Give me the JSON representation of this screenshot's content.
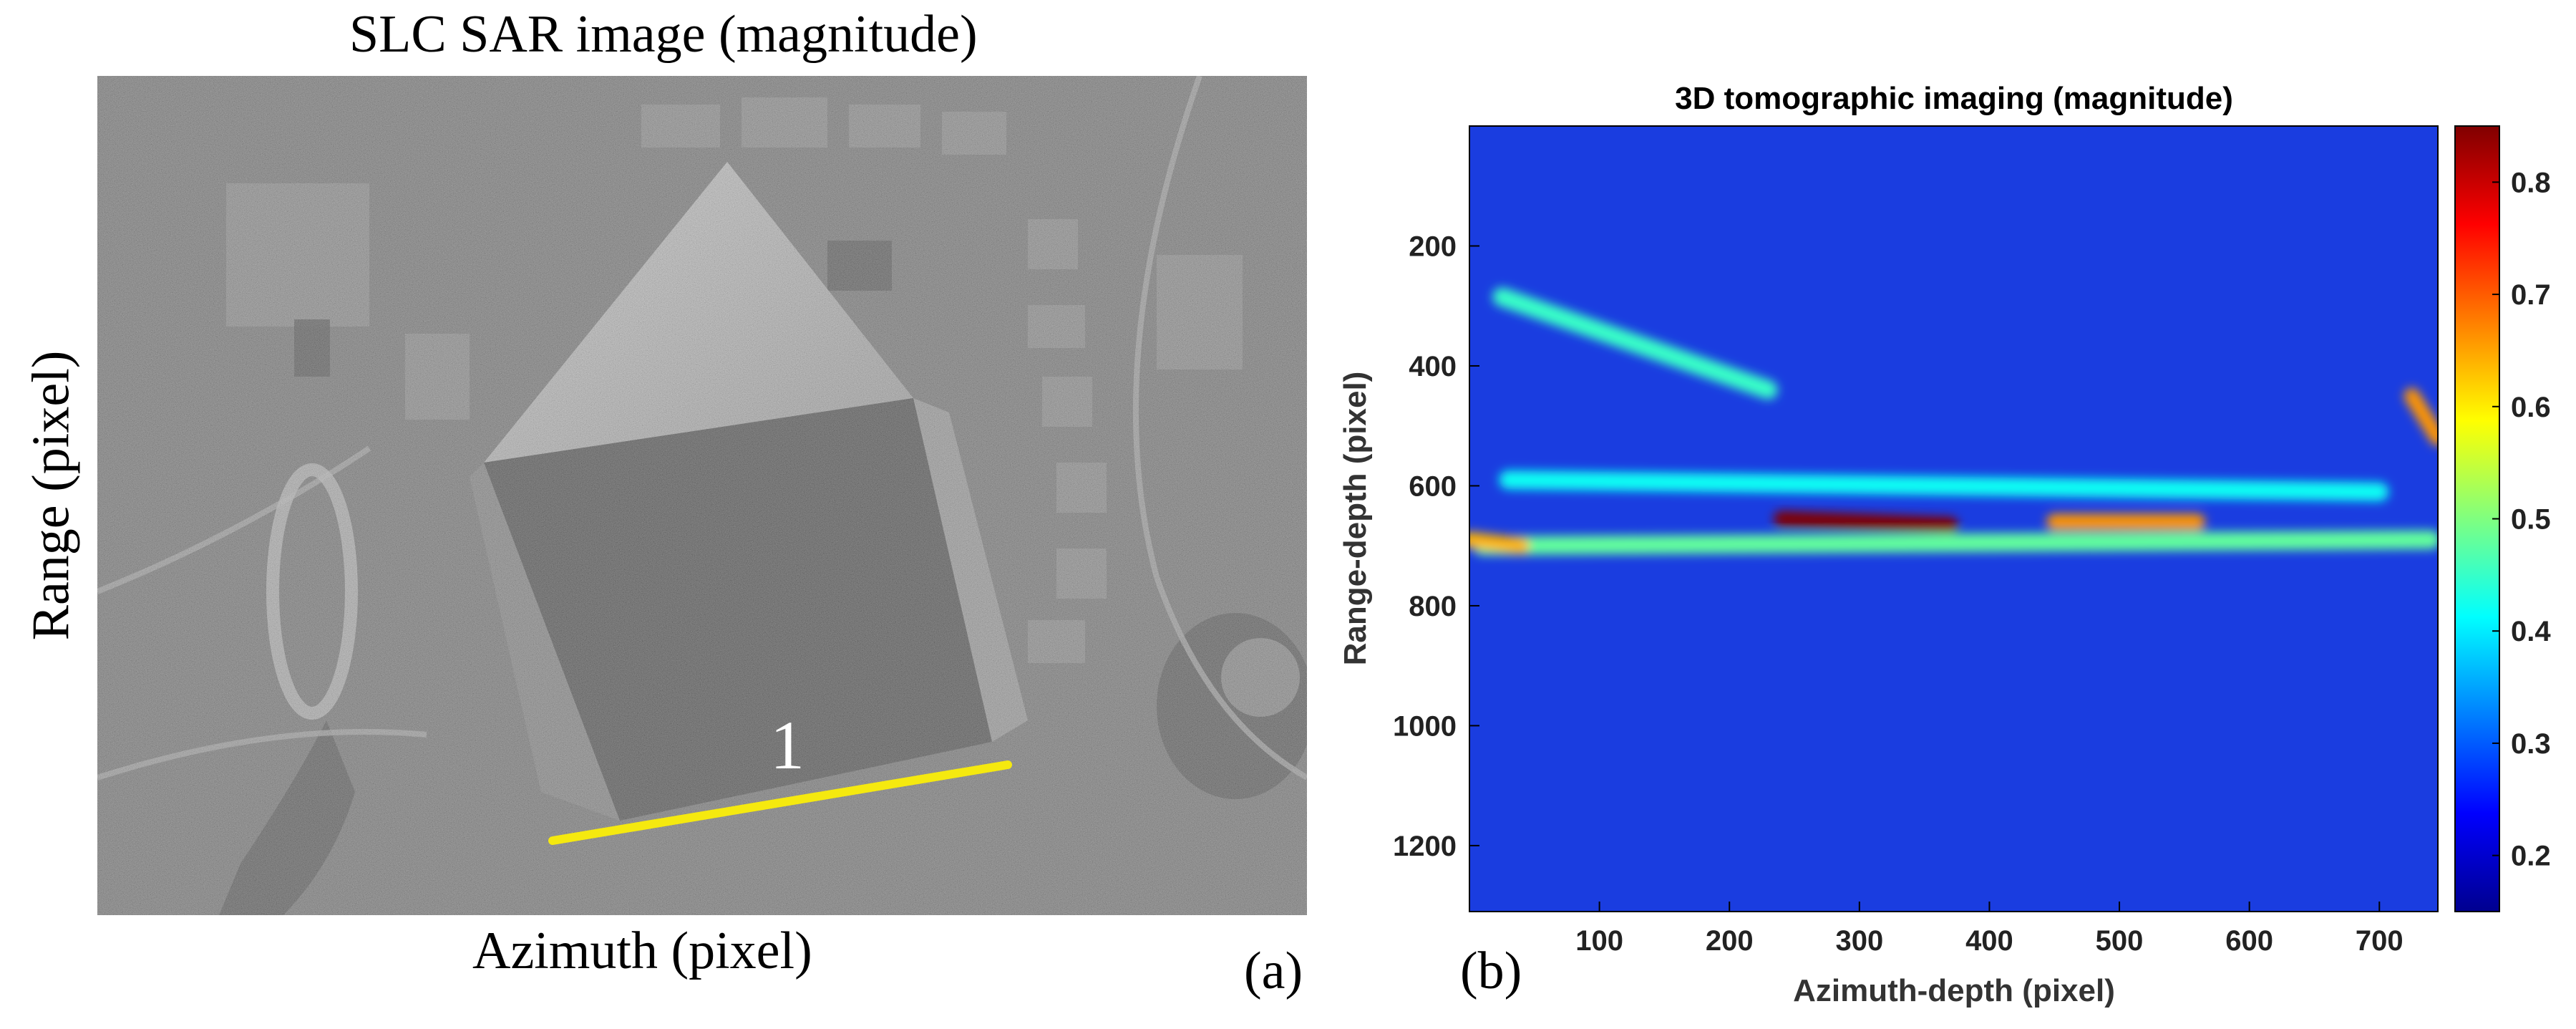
{
  "panel_a": {
    "title": "SLC SAR image (magnitude)",
    "xlabel": "Azimuth (pixel)",
    "ylabel": "Range (pixel)",
    "panel_label": "(a)",
    "annotation": "1",
    "annotation_line_color": "#f5e90f"
  },
  "panel_b": {
    "panel_label": "(b)"
  },
  "chart_data": {
    "type": "heatmap",
    "title": "3D tomographic imaging (magnitude)",
    "xlabel": "Azimuth-depth (pixel)",
    "ylabel": "Range-depth (pixel)",
    "xlim": [
      0,
      745
    ],
    "ylim": [
      1310,
      0
    ],
    "x_ticks": [
      100,
      200,
      300,
      400,
      500,
      600,
      700
    ],
    "y_ticks": [
      200,
      400,
      600,
      800,
      1000,
      1200
    ],
    "colorbar": {
      "colormap": "jet",
      "range": [
        0.15,
        0.85
      ],
      "ticks": [
        0.2,
        0.3,
        0.4,
        0.5,
        0.6,
        0.7,
        0.8
      ]
    },
    "features": [
      {
        "kind": "band",
        "x": [
          10,
          740
        ],
        "y": [
          700,
          690
        ],
        "value": 0.48
      },
      {
        "kind": "band",
        "x": [
          30,
          700
        ],
        "y": [
          590,
          610
        ],
        "value": 0.42
      },
      {
        "kind": "band",
        "x": [
          25,
          230
        ],
        "y": [
          285,
          440
        ],
        "value": 0.45
      },
      {
        "kind": "peak",
        "x": [
          240,
          370
        ],
        "y": [
          655,
          665
        ],
        "value": 0.85
      },
      {
        "kind": "peak",
        "x": [
          450,
          560
        ],
        "y": [
          660,
          660
        ],
        "value": 0.66
      },
      {
        "kind": "peak",
        "x": [
          0,
          40
        ],
        "y": [
          690,
          700
        ],
        "value": 0.64
      },
      {
        "kind": "peak",
        "x": [
          725,
          745
        ],
        "y": [
          450,
          520
        ],
        "value": 0.66
      }
    ]
  }
}
